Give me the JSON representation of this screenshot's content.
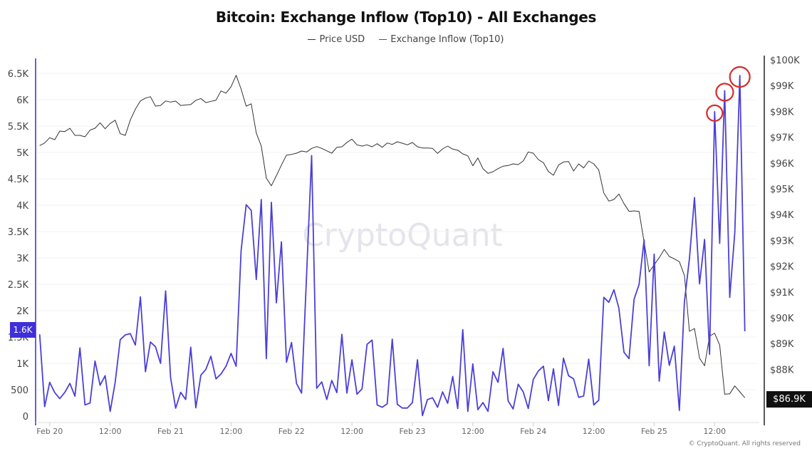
{
  "chart_data": {
    "type": "line",
    "title": "Bitcoin: Exchange Inflow (Top10) - All Exchanges",
    "legend": {
      "position": "top-center",
      "entries": [
        "Price USD",
        "Exchange Inflow (Top10)"
      ]
    },
    "x": [
      "Feb 19 22:00",
      "Feb 19 23:00",
      "Feb 20 00:00",
      "Feb 20 01:00",
      "Feb 20 02:00",
      "Feb 20 03:00",
      "Feb 20 04:00",
      "Feb 20 05:00",
      "Feb 20 06:00",
      "Feb 20 07:00",
      "Feb 20 08:00",
      "Feb 20 09:00",
      "Feb 20 10:00",
      "Feb 20 11:00",
      "Feb 20 12:00",
      "Feb 20 13:00",
      "Feb 20 14:00",
      "Feb 20 15:00",
      "Feb 20 16:00",
      "Feb 20 17:00",
      "Feb 20 18:00",
      "Feb 20 19:00",
      "Feb 20 20:00",
      "Feb 20 21:00",
      "Feb 20 22:00",
      "Feb 20 23:00",
      "Feb 21 00:00",
      "Feb 21 01:00",
      "Feb 21 02:00",
      "Feb 21 03:00",
      "Feb 21 04:00",
      "Feb 21 05:00",
      "Feb 21 06:00",
      "Feb 21 07:00",
      "Feb 21 08:00",
      "Feb 21 09:00",
      "Feb 21 10:00",
      "Feb 21 11:00",
      "Feb 21 12:00",
      "Feb 21 13:00",
      "Feb 21 14:00",
      "Feb 21 15:00",
      "Feb 21 16:00",
      "Feb 21 17:00",
      "Feb 21 18:00",
      "Feb 21 19:00",
      "Feb 21 20:00",
      "Feb 21 21:00",
      "Feb 21 22:00",
      "Feb 21 23:00",
      "Feb 22 00:00",
      "Feb 22 01:00",
      "Feb 22 02:00",
      "Feb 22 03:00",
      "Feb 22 04:00",
      "Feb 22 05:00",
      "Feb 22 06:00",
      "Feb 22 07:00",
      "Feb 22 08:00",
      "Feb 22 09:00",
      "Feb 22 10:00",
      "Feb 22 11:00",
      "Feb 22 12:00",
      "Feb 22 13:00",
      "Feb 22 14:00",
      "Feb 22 15:00",
      "Feb 22 16:00",
      "Feb 22 17:00",
      "Feb 22 18:00",
      "Feb 22 19:00",
      "Feb 22 20:00",
      "Feb 22 21:00",
      "Feb 22 22:00",
      "Feb 22 23:00",
      "Feb 23 00:00",
      "Feb 23 01:00",
      "Feb 23 02:00",
      "Feb 23 03:00",
      "Feb 23 04:00",
      "Feb 23 05:00",
      "Feb 23 06:00",
      "Feb 23 07:00",
      "Feb 23 08:00",
      "Feb 23 09:00",
      "Feb 23 10:00",
      "Feb 23 11:00",
      "Feb 23 12:00",
      "Feb 23 13:00",
      "Feb 23 14:00",
      "Feb 23 15:00",
      "Feb 23 16:00",
      "Feb 23 17:00",
      "Feb 23 18:00",
      "Feb 23 19:00",
      "Feb 23 20:00",
      "Feb 23 21:00",
      "Feb 23 22:00",
      "Feb 23 23:00",
      "Feb 24 00:00",
      "Feb 24 01:00",
      "Feb 24 02:00",
      "Feb 24 03:00",
      "Feb 24 04:00",
      "Feb 24 05:00",
      "Feb 24 06:00",
      "Feb 24 07:00",
      "Feb 24 08:00",
      "Feb 24 09:00",
      "Feb 24 10:00",
      "Feb 24 11:00",
      "Feb 24 12:00",
      "Feb 24 13:00",
      "Feb 24 14:00",
      "Feb 24 15:00",
      "Feb 24 16:00",
      "Feb 24 17:00",
      "Feb 24 18:00",
      "Feb 24 19:00",
      "Feb 24 20:00",
      "Feb 24 21:00",
      "Feb 24 22:00",
      "Feb 24 23:00",
      "Feb 25 00:00",
      "Feb 25 01:00",
      "Feb 25 02:00",
      "Feb 25 03:00",
      "Feb 25 04:00",
      "Feb 25 05:00",
      "Feb 25 06:00",
      "Feb 25 07:00",
      "Feb 25 08:00",
      "Feb 25 09:00",
      "Feb 25 10:00",
      "Feb 25 11:00",
      "Feb 25 12:00",
      "Feb 25 13:00",
      "Feb 25 14:00",
      "Feb 25 15:00",
      "Feb 25 16:00",
      "Feb 25 17:00",
      "Feb 25 18:00"
    ],
    "series": [
      {
        "name": "Price USD",
        "axis": "right",
        "color": "#333333",
        "values": [
          96677,
          96776,
          96980,
          96906,
          97238,
          97219,
          97348,
          97072,
          97072,
          97017,
          97274,
          97348,
          97561,
          97329,
          97533,
          97660,
          97135,
          97072,
          97671,
          98085,
          98406,
          98517,
          98572,
          98204,
          98232,
          98406,
          98362,
          98400,
          98232,
          98251,
          98268,
          98434,
          98500,
          98343,
          98389,
          98434,
          98793,
          98710,
          98959,
          99401,
          98867,
          98204,
          98296,
          97163,
          96657,
          95414,
          95119,
          95506,
          95920,
          96307,
          96334,
          96381,
          96464,
          96428,
          96566,
          96638,
          96566,
          96472,
          96381,
          96610,
          96630,
          96796,
          96925,
          96704,
          96657,
          96704,
          96630,
          96749,
          96610,
          96776,
          96721,
          96823,
          96768,
          96704,
          96796,
          96630,
          96583,
          96583,
          96566,
          96373,
          96547,
          96657,
          96538,
          96500,
          96354,
          96280,
          95892,
          96196,
          95782,
          95599,
          95663,
          95782,
          95875,
          95903,
          95967,
          95939,
          96077,
          96428,
          96381,
          96133,
          96014,
          95671,
          95525,
          95920,
          96041,
          96058,
          95691,
          95967,
          95810,
          96077,
          95967,
          95730,
          94843,
          94522,
          94586,
          94798,
          94428,
          94124,
          94144,
          94124,
          92928,
          91777,
          92053,
          92329,
          92652,
          92376,
          92284,
          92174,
          91638,
          89475,
          89586,
          88434,
          88141,
          89290,
          89400,
          88942,
          87035,
          87052,
          87356,
          87127,
          86900
        ]
      },
      {
        "name": "Exchange Inflow (Top10)",
        "axis": "left",
        "color": "#4b3fd8",
        "values": [
          1550,
          180,
          640,
          445,
          333,
          450,
          620,
          378,
          1293,
          212,
          248,
          1045,
          585,
          766,
          90,
          640,
          1450,
          1540,
          1563,
          1347,
          2261,
          842,
          1405,
          1315,
          1000,
          2374,
          730,
          150,
          450,
          315,
          1307,
          158,
          775,
          887,
          1135,
          707,
          797,
          946,
          1189,
          946,
          3139,
          4009,
          3901,
          2590,
          4108,
          1090,
          4054,
          2149,
          3306,
          1022,
          1396,
          617,
          437,
          2700,
          4941,
          527,
          649,
          315,
          676,
          446,
          1550,
          437,
          1068,
          415,
          518,
          1361,
          1442,
          212,
          167,
          234,
          1459,
          225,
          153,
          153,
          257,
          1068,
          9,
          315,
          347,
          167,
          459,
          243,
          752,
          144,
          1640,
          90,
          991,
          122,
          257,
          90,
          842,
          640,
          1284,
          288,
          135,
          604,
          459,
          144,
          694,
          856,
          946,
          293,
          896,
          203,
          1099,
          766,
          707,
          356,
          383,
          1081,
          212,
          302,
          2253,
          2158,
          2396,
          2045,
          1212,
          1090,
          2216,
          2496,
          3342,
          955,
          3072,
          662,
          1595,
          964,
          1324,
          108,
          2171,
          2982,
          4144,
          2509,
          3351,
          1171,
          5774,
          3275,
          6171,
          2253,
          3477,
          6459,
          1608
        ]
      }
    ],
    "y_left": {
      "ylim": [
        0,
        6500
      ],
      "ticks": [
        "0",
        "500",
        "1K",
        "1.5K",
        "2K",
        "2.5K",
        "3K",
        "3.5K",
        "4K",
        "4.5K",
        "5K",
        "5.5K",
        "6K",
        "6.5K"
      ],
      "tick_values": [
        0,
        500,
        1000,
        1500,
        2000,
        2500,
        3000,
        3500,
        4000,
        4500,
        5000,
        5500,
        6000,
        6500
      ],
      "current_label": "1.6K",
      "color": "#3e2fd8"
    },
    "y_right": {
      "ylim": [
        86500,
        100000
      ],
      "ticks": [
        "$88K",
        "$89K",
        "$90K",
        "$91K",
        "$92K",
        "$93K",
        "$94K",
        "$95K",
        "$96K",
        "$97K",
        "$98K",
        "$99K",
        "$100K"
      ],
      "tick_values": [
        88000,
        89000,
        90000,
        91000,
        92000,
        93000,
        94000,
        95000,
        96000,
        97000,
        98000,
        99000,
        100000
      ],
      "current_label": "$86.9K"
    },
    "x_ticks": {
      "labels": [
        "Feb 20",
        "12:00",
        "Feb 21",
        "12:00",
        "Feb 22",
        "12:00",
        "Feb 23",
        "12:00",
        "Feb 24",
        "12:00",
        "Feb 25",
        "12:00"
      ],
      "times": [
        "Feb 20 00:00",
        "Feb 20 12:00",
        "Feb 21 00:00",
        "Feb 21 12:00",
        "Feb 22 00:00",
        "Feb 22 12:00",
        "Feb 23 00:00",
        "Feb 23 12:00",
        "Feb 24 00:00",
        "Feb 24 12:00",
        "Feb 25 00:00",
        "Feb 25 12:00"
      ]
    },
    "grid": true,
    "annotations": {
      "type": "red-circle",
      "color": "#d62c2c",
      "series": "Exchange Inflow (Top10)",
      "at": [
        "Feb 25 12:00",
        "Feb 25 14:00",
        "Feb 25 17:00"
      ]
    }
  },
  "watermark": "CryptoQuant",
  "footer": "© CryptoQuant. All rights reserved"
}
